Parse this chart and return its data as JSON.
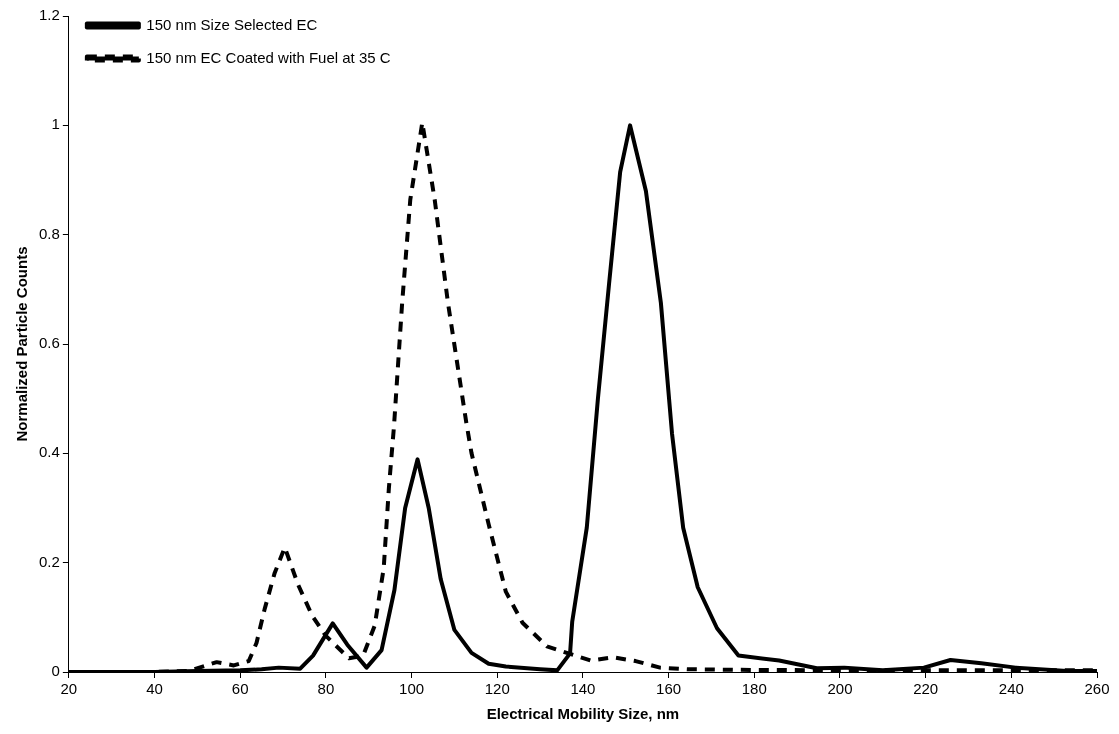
{
  "chart_data": {
    "type": "line",
    "xlabel": "Electrical Mobility Size, nm",
    "ylabel": "Normalized Particle Counts",
    "xlim": [
      20,
      260
    ],
    "xticks": [
      20,
      40,
      60,
      80,
      100,
      120,
      140,
      160,
      180,
      200,
      220,
      240,
      260
    ],
    "ylim": [
      0,
      1.2
    ],
    "yticks": [
      0,
      0.2,
      0.4,
      0.6,
      0.8,
      1,
      1.2
    ],
    "grid": false,
    "legend": "top left",
    "marker": "none",
    "series": [
      {
        "name": "150 nm Size Selected EC",
        "color": "#000000",
        "line_style": "solid",
        "x": [
          20,
          40,
          50,
          60,
          65,
          69,
          74,
          77,
          81.6,
          85,
          89.5,
          93,
          96,
          98.5,
          101.4,
          104,
          106.8,
          110,
          114,
          118,
          122,
          130,
          134,
          137,
          137.5,
          140.9,
          143.5,
          146.1,
          148.7,
          151,
          154.7,
          158.2,
          160.8,
          163.4,
          166.8,
          171.3,
          176.3,
          185.8,
          194.6,
          201,
          210,
          219.6,
          225.8,
          233,
          241,
          253,
          260
        ],
        "values": [
          0,
          0,
          0.002,
          0.003,
          0.005,
          0.008,
          0.006,
          0.03,
          0.089,
          0.05,
          0.008,
          0.04,
          0.15,
          0.3,
          0.389,
          0.3,
          0.17,
          0.077,
          0.035,
          0.015,
          0.01,
          0.005,
          0.003,
          0.034,
          0.092,
          0.264,
          0.5,
          0.71,
          0.915,
          1.0,
          0.88,
          0.675,
          0.436,
          0.264,
          0.155,
          0.08,
          0.03,
          0.021,
          0.007,
          0.008,
          0.003,
          0.008,
          0.022,
          0.016,
          0.008,
          0.002,
          0.002
        ]
      },
      {
        "name": "150 nm EC Coated with Fuel at 35 C",
        "color": "#000000",
        "line_style": "dashed",
        "x": [
          20,
          40,
          48,
          54.5,
          58.5,
          62,
          63.8,
          65.7,
          68,
          70.4,
          73.5,
          76.8,
          80,
          85.4,
          88.7,
          91.4,
          93.5,
          94.7,
          95.9,
          97.8,
          99.7,
          102.5,
          105.4,
          108.5,
          112.8,
          114,
          118,
          122,
          125.9,
          131.6,
          137,
          141.8,
          147,
          152.3,
          158,
          164.4,
          175.6,
          200,
          230,
          260
        ],
        "values": [
          0,
          0,
          0.002,
          0.018,
          0.012,
          0.02,
          0.053,
          0.115,
          0.18,
          0.228,
          0.16,
          0.103,
          0.066,
          0.025,
          0.03,
          0.085,
          0.19,
          0.336,
          0.45,
          0.675,
          0.864,
          1.005,
          0.864,
          0.675,
          0.455,
          0.4,
          0.27,
          0.147,
          0.09,
          0.047,
          0.033,
          0.021,
          0.027,
          0.02,
          0.008,
          0.005,
          0.004,
          0.003,
          0.003,
          0.003
        ]
      }
    ]
  }
}
